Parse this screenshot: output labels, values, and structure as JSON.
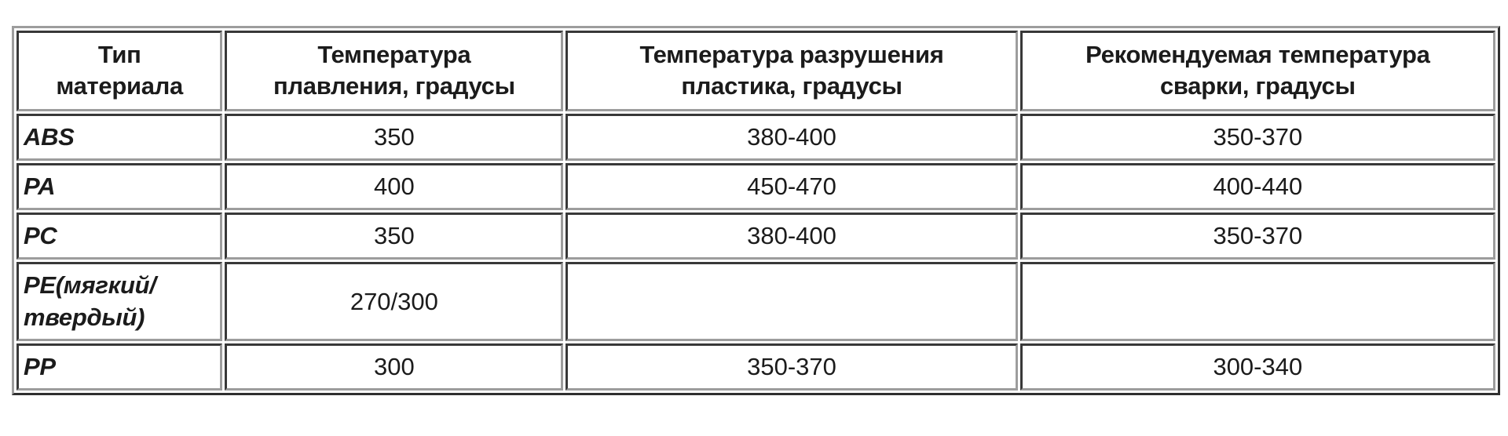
{
  "colors": {
    "page_background": "#ffffff",
    "cell_background": "#ffffff",
    "text": "#1b1b1b",
    "border_dark": "#383838",
    "border_light": "#9d9d9d"
  },
  "table": {
    "headers": [
      "Тип\nматериала",
      "Температура\nплавления, градусы",
      "Температура разрушения\nпластика, градусы",
      "Рекомендуемая температура\nсварки, градусы"
    ],
    "col_widths": [
      "14%",
      "23%",
      "30.7%",
      "32.3%"
    ],
    "rows": [
      [
        "ABS",
        "350",
        "380-400",
        "350-370"
      ],
      [
        "PA",
        "400",
        "450-470",
        "400-440"
      ],
      [
        "PC",
        "350",
        "380-400",
        "350-370"
      ],
      [
        "PE(мягкий/\nтвердый)",
        "270/300",
        "",
        ""
      ],
      [
        "PP",
        "300",
        "350-370",
        "300-340"
      ]
    ]
  },
  "chart_data": {
    "type": "table",
    "title": "",
    "columns": [
      "Тип материала",
      "Температура плавления, градусы",
      "Температура разрушения пластика, градусы",
      "Рекомендуемая температура сварки, градусы"
    ],
    "rows": [
      {
        "material": "ABS",
        "melting_temp": "350",
        "destruction_temp": "380-400",
        "welding_temp": "350-370"
      },
      {
        "material": "PA",
        "melting_temp": "400",
        "destruction_temp": "450-470",
        "welding_temp": "400-440"
      },
      {
        "material": "PC",
        "melting_temp": "350",
        "destruction_temp": "380-400",
        "welding_temp": "350-370"
      },
      {
        "material": "PE(мягкий/твердый)",
        "melting_temp": "270/300",
        "destruction_temp": "",
        "welding_temp": ""
      },
      {
        "material": "PP",
        "melting_temp": "300",
        "destruction_temp": "350-370",
        "welding_temp": "300-340"
      }
    ]
  }
}
